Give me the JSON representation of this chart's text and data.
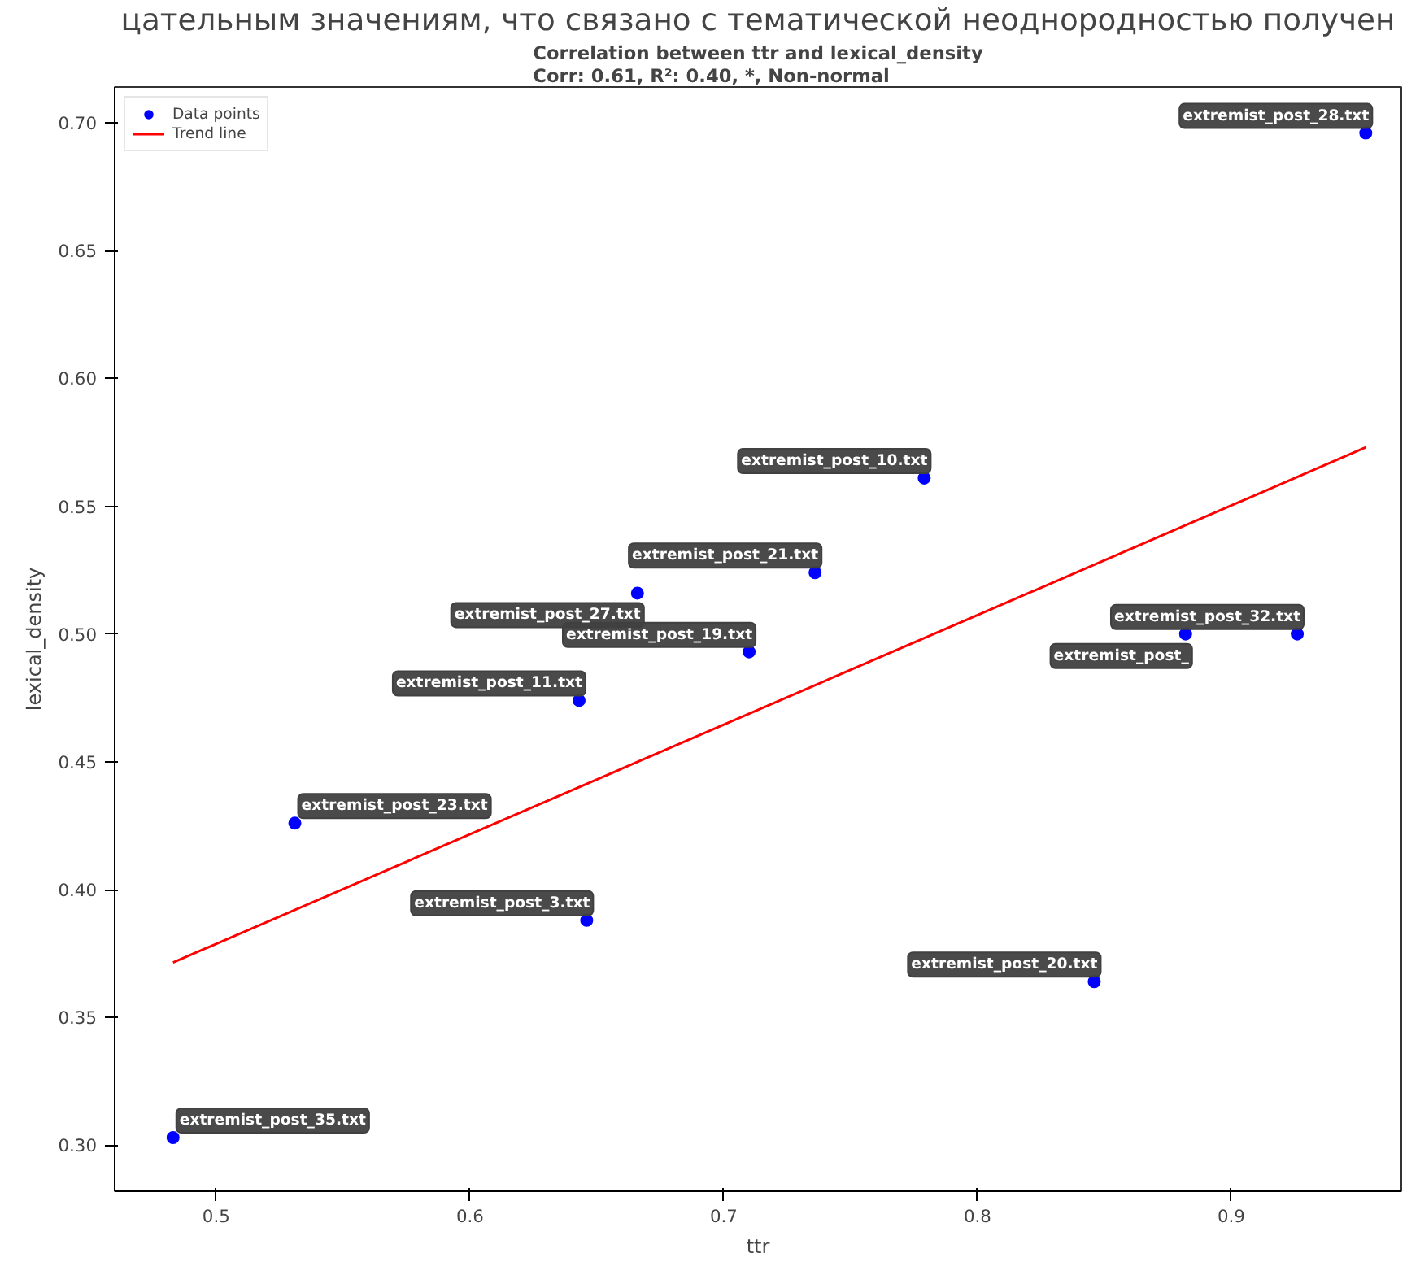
{
  "chart_data": {
    "type": "scatter",
    "title": "Correlation between ttr and lexical_density\nCorr: 0.61, R²: 0.40, *, Non-normal",
    "xlabel": "ttr",
    "ylabel": "lexical_density",
    "xlim": [
      0.46,
      0.967
    ],
    "ylim": [
      0.282,
      0.714
    ],
    "xticks": [
      0.5,
      0.6,
      0.7,
      0.8,
      0.9
    ],
    "yticks": [
      {
        "value": 0.3,
        "label": "0.30"
      },
      {
        "value": 0.35,
        "label": "0.35"
      },
      {
        "value": 0.4,
        "label": "0.40"
      },
      {
        "value": 0.45,
        "label": "0.45"
      },
      {
        "value": 0.5,
        "label": "0.50"
      },
      {
        "value": 0.55,
        "label": "0.55"
      },
      {
        "value": 0.6,
        "label": "0.60"
      },
      {
        "value": 0.65,
        "label": "0.65"
      },
      {
        "value": 0.7,
        "label": "0.70"
      }
    ],
    "grid": false,
    "legend": "top left",
    "series": [
      {
        "name": "Data points",
        "type": "scatter",
        "marker": "circle",
        "color": "#0000ff",
        "x": [
          0.953,
          0.779,
          0.736,
          0.666,
          0.71,
          0.643,
          0.882,
          0.926,
          0.531,
          0.646,
          0.846,
          0.483
        ],
        "values": [
          0.696,
          0.561,
          0.524,
          0.516,
          0.493,
          0.474,
          0.5,
          0.5,
          0.426,
          0.388,
          0.364,
          0.303
        ]
      },
      {
        "name": "Trend line",
        "type": "line",
        "color": "#ff0000",
        "x": [
          0.483,
          0.953
        ],
        "values": [
          0.3715,
          0.573
        ]
      }
    ],
    "annotations": [
      "цательным значениям, что связано с тематической неоднородностью получен",
      {
        "text": "extremist_post_28.txt",
        "x": 0.953,
        "y": 0.696
      },
      {
        "text": "extremist_post_10.txt",
        "x": 0.779,
        "y": 0.561
      },
      {
        "text": "extremist_post_21.txt",
        "x": 0.736,
        "y": 0.524
      },
      {
        "text": "extremist_post_27.txt",
        "x": 0.666,
        "y": 0.516
      },
      {
        "text": "extremist_post_19.txt",
        "x": 0.71,
        "y": 0.493
      },
      {
        "text": "extremist_post_11.txt",
        "x": 0.643,
        "y": 0.474
      },
      {
        "text": "extremist_post_",
        "x": 0.882,
        "y": 0.5
      },
      {
        "text": "extremist_post_32.txt",
        "x": 0.926,
        "y": 0.5
      },
      {
        "text": "extremist_post_23.txt",
        "x": 0.531,
        "y": 0.426
      },
      {
        "text": "extremist_post_3.txt",
        "x": 0.646,
        "y": 0.388
      },
      {
        "text": "extremist_post_20.txt",
        "x": 0.846,
        "y": 0.364
      },
      {
        "text": "extremist_post_35.txt",
        "x": 0.483,
        "y": 0.303
      }
    ]
  }
}
